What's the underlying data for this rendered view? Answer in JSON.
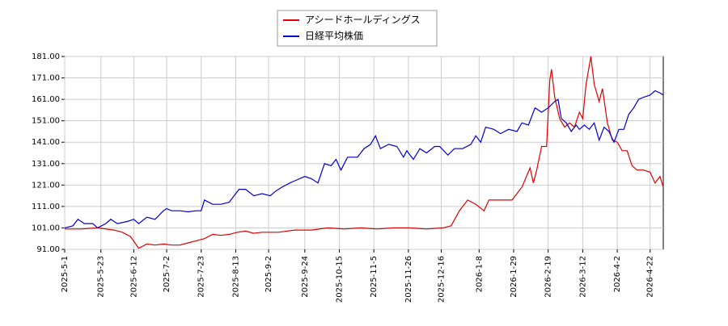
{
  "chart_data": {
    "type": "line",
    "xlim": [
      0,
      364
    ],
    "ylim": [
      91,
      181
    ],
    "xticks": [
      {
        "value": 0,
        "label": "2025-5-1"
      },
      {
        "value": 22,
        "label": "2025-5-23"
      },
      {
        "value": 42,
        "label": "2025-6-12"
      },
      {
        "value": 62,
        "label": "2025-7-2"
      },
      {
        "value": 83,
        "label": "2025-7-23"
      },
      {
        "value": 104,
        "label": "2025-8-13"
      },
      {
        "value": 124,
        "label": "2025-9-2"
      },
      {
        "value": 146,
        "label": "2025-9-24"
      },
      {
        "value": 167,
        "label": "2025-10-15"
      },
      {
        "value": 188,
        "label": "2025-11-5"
      },
      {
        "value": 209,
        "label": "2025-11-26"
      },
      {
        "value": 229,
        "label": "2025-12-16"
      },
      {
        "value": 252,
        "label": "2026-1-8"
      },
      {
        "value": 273,
        "label": "2026-1-29"
      },
      {
        "value": 294,
        "label": "2026-2-19"
      },
      {
        "value": 315,
        "label": "2026-3-12"
      },
      {
        "value": 336,
        "label": "2026-4-2"
      },
      {
        "value": 356,
        "label": "2026-4-22"
      }
    ],
    "yticks": [
      {
        "value": 91,
        "label": "91.00"
      },
      {
        "value": 101,
        "label": "101.00"
      },
      {
        "value": 111,
        "label": "111.00"
      },
      {
        "value": 121,
        "label": "121.00"
      },
      {
        "value": 131,
        "label": "131.00"
      },
      {
        "value": 141,
        "label": "141.00"
      },
      {
        "value": 151,
        "label": "151.00"
      },
      {
        "value": 161,
        "label": "161.00"
      },
      {
        "value": 171,
        "label": "171.00"
      },
      {
        "value": 181,
        "label": "181.00"
      }
    ],
    "grid": true,
    "series": [
      {
        "name": "アシードホールディングス",
        "color": "#dd0000",
        "x": [
          0,
          10,
          20,
          30,
          35,
          40,
          45,
          50,
          55,
          60,
          65,
          70,
          75,
          80,
          85,
          90,
          95,
          100,
          105,
          110,
          115,
          120,
          130,
          140,
          150,
          160,
          170,
          180,
          190,
          200,
          210,
          220,
          230,
          235,
          240,
          245,
          250,
          255,
          258,
          265,
          272,
          278,
          283,
          285,
          287,
          290,
          293,
          295,
          296,
          298,
          301,
          304,
          307,
          310,
          313,
          315,
          317,
          320,
          322,
          325,
          327,
          330,
          333,
          336,
          339,
          342,
          345,
          348,
          352,
          356,
          359,
          362,
          364
        ],
        "values": [
          100.5,
          100.5,
          101,
          100,
          99,
          97,
          91.5,
          93.5,
          93,
          93.5,
          93,
          93,
          94,
          95,
          96,
          98,
          97.5,
          98,
          99,
          99.5,
          98.5,
          99,
          99,
          100,
          100,
          101,
          100.5,
          101,
          100.5,
          101,
          101,
          100.5,
          101,
          102,
          109,
          114,
          112,
          109,
          114,
          114,
          114,
          120,
          129,
          122,
          128,
          139,
          139,
          170,
          175,
          162,
          152,
          148,
          150,
          148,
          155,
          152,
          168,
          181,
          168,
          160,
          166,
          150,
          142,
          141,
          137,
          137,
          130,
          128,
          128,
          127,
          122,
          125,
          120
        ]
      },
      {
        "name": "日経平均株価",
        "color": "#0000cc",
        "x": [
          0,
          5,
          8,
          12,
          17,
          20,
          25,
          28,
          32,
          38,
          42,
          45,
          50,
          55,
          60,
          62,
          65,
          70,
          75,
          80,
          83,
          85,
          90,
          95,
          100,
          104,
          106,
          110,
          115,
          120,
          125,
          128,
          132,
          137,
          140,
          146,
          150,
          154,
          158,
          162,
          165,
          168,
          172,
          178,
          182,
          186,
          189,
          192,
          197,
          202,
          206,
          208,
          212,
          216,
          220,
          225,
          228,
          233,
          237,
          242,
          247,
          250,
          253,
          256,
          261,
          265,
          270,
          275,
          278,
          282,
          286,
          290,
          294,
          298,
          300,
          302,
          305,
          308,
          311,
          313,
          316,
          319,
          322,
          325,
          328,
          331,
          334,
          337,
          340,
          343,
          346,
          349,
          352,
          356,
          359,
          362,
          364
        ],
        "values": [
          101,
          102,
          105,
          103,
          103,
          101,
          103,
          105,
          103,
          104,
          105,
          103,
          106,
          105,
          109,
          110,
          109,
          109,
          108.5,
          109,
          109,
          114,
          112,
          112,
          113,
          117,
          119,
          119,
          116,
          117,
          116,
          118,
          120,
          122,
          123,
          125,
          124,
          122,
          131,
          130,
          133,
          128,
          134,
          134,
          138,
          140,
          144,
          138,
          140,
          139,
          134,
          137,
          133,
          138,
          136,
          139,
          139,
          135,
          138,
          138,
          140,
          144,
          141,
          148,
          147,
          145,
          147,
          146,
          150,
          149,
          157,
          155,
          157,
          160,
          161,
          152,
          150,
          146,
          149,
          147,
          149,
          147,
          150,
          142,
          148,
          146,
          141,
          147,
          147,
          154,
          157,
          161,
          162,
          163,
          165,
          164,
          163
        ]
      }
    ]
  }
}
